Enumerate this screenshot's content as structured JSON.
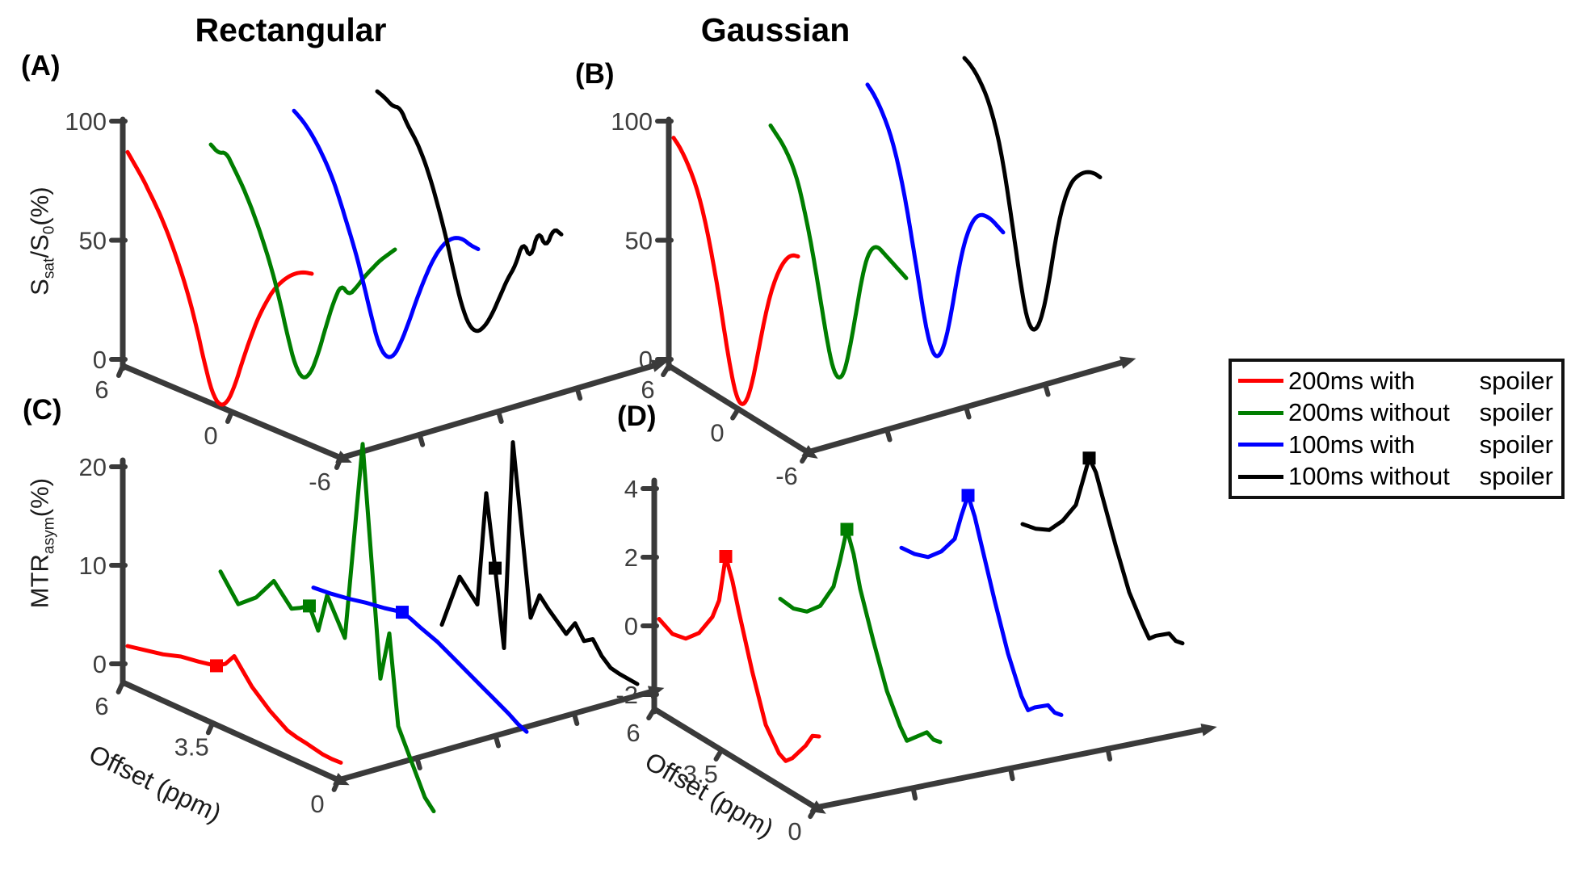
{
  "figure": {
    "column_titles": [
      "Rectangular",
      "Gaussian"
    ],
    "panel_labels": [
      "(A)",
      "(B)",
      "(C)",
      "(D)"
    ]
  },
  "colors": {
    "red": "#ff0000",
    "green": "#007e00",
    "blue": "#0000ff",
    "black": "#000000",
    "axis": "#3a3a3a",
    "tick_text": "#3e3e3e"
  },
  "legend": {
    "entries": [
      {
        "label_left": "200ms with",
        "label_right": "spoiler",
        "color": "#ff0000"
      },
      {
        "label_left": "200ms without",
        "label_right": "spoiler",
        "color": "#007e00"
      },
      {
        "label_left": "100ms with",
        "label_right": "spoiler",
        "color": "#0000ff"
      },
      {
        "label_left": "100ms without",
        "label_right": "spoiler",
        "color": "#000000"
      }
    ]
  },
  "chart_data": [
    {
      "id": "A",
      "type": "line",
      "title": "Rectangular",
      "ylabel": "Ssat/S0(%)",
      "ylabel_parts": [
        {
          "text": "S",
          "sub": false
        },
        {
          "text": "sat",
          "sub": true
        },
        {
          "text": "/S",
          "sub": false
        },
        {
          "text": "0",
          "sub": true
        },
        {
          "text": "(%)",
          "sub": false
        }
      ],
      "xlabel": "",
      "z_ticks": [
        0,
        50,
        100
      ],
      "offset_ticks": [
        6,
        0,
        -6
      ],
      "offset_range": [
        6,
        -6
      ],
      "offsets": [
        6,
        5.5,
        5,
        4.5,
        4,
        3.5,
        3,
        2.5,
        2,
        1.5,
        1,
        0.5,
        0,
        -0.5,
        -1,
        -1.5,
        -2,
        -2.5,
        -3,
        -3.5,
        -4,
        -4.5,
        -5,
        -5.5,
        -6
      ],
      "series": [
        {
          "name": "200ms with spoiler",
          "color": "#ff0000",
          "values": [
            87,
            83,
            79,
            74,
            69,
            63,
            56,
            48,
            39,
            28,
            15,
            4,
            0,
            3,
            12,
            24,
            35,
            45,
            53,
            60,
            65,
            69,
            72,
            74,
            75
          ]
        },
        {
          "name": "200ms without spoiler",
          "color": "#007e00",
          "values": [
            80,
            78,
            80,
            75,
            70,
            64,
            57,
            49,
            40,
            29,
            16,
            5,
            1,
            5,
            15,
            28,
            40,
            49,
            46,
            51,
            57,
            62,
            67,
            71,
            75
          ]
        },
        {
          "name": "100ms with spoiler",
          "color": "#0000ff",
          "values": [
            84,
            82,
            79,
            75,
            70,
            64,
            56,
            47,
            38,
            27,
            15,
            4,
            0,
            2,
            10,
            20,
            31,
            41,
            50,
            57,
            62,
            65,
            66,
            65,
            65
          ]
        },
        {
          "name": "100ms without spoiler",
          "color": "#000000",
          "values": [
            82,
            81,
            79,
            80,
            74,
            70,
            64,
            56,
            46,
            35,
            22,
            10,
            3,
            2,
            6,
            13,
            22,
            31,
            38,
            50,
            44,
            58,
            52,
            62,
            61
          ]
        }
      ]
    },
    {
      "id": "B",
      "type": "line",
      "title": "Gaussian",
      "ylabel": "",
      "ylabel_parts": [],
      "xlabel": "",
      "z_ticks": [
        0,
        50,
        100
      ],
      "offset_ticks": [
        6,
        0,
        -6
      ],
      "offset_range": [
        6,
        -6
      ],
      "offsets": [
        6,
        5.5,
        5,
        4.5,
        4,
        3.5,
        3,
        2.5,
        2,
        1.5,
        1,
        0.5,
        0,
        -0.5,
        -1,
        -1.5,
        -2,
        -2.5,
        -3,
        -3.5,
        -4,
        -4.5,
        -5,
        -5.5,
        -6
      ],
      "series": [
        {
          "name": "200ms with spoiler",
          "color": "#ff0000",
          "offsets": [
            6,
            5.5,
            5,
            4.5,
            4,
            3.5,
            3,
            2.5,
            2,
            1.5,
            1,
            0.5,
            0,
            -0.5,
            -1,
            -1.5,
            -2,
            -2.5,
            -3,
            -3.5,
            -4,
            -4.5,
            -5
          ],
          "values": [
            93,
            91,
            88,
            84,
            79,
            72,
            63,
            52,
            40,
            26,
            13,
            3,
            0,
            4,
            14,
            28,
            42,
            54,
            63,
            70,
            75,
            78,
            79
          ]
        },
        {
          "name": "200ms without spoiler",
          "color": "#007e00",
          "values": [
            88,
            86,
            84,
            81,
            77,
            71,
            62,
            52,
            40,
            27,
            14,
            4,
            1,
            5,
            17,
            32,
            48,
            60,
            66,
            68,
            67,
            66,
            65,
            64,
            63
          ]
        },
        {
          "name": "100ms with spoiler",
          "color": "#0000ff",
          "values": [
            95,
            93,
            90,
            86,
            81,
            74,
            65,
            54,
            41,
            28,
            14,
            4,
            0,
            3,
            12,
            26,
            42,
            55,
            64,
            70,
            73,
            74,
            74,
            73,
            72
          ]
        },
        {
          "name": "100ms without spoiler",
          "color": "#000000",
          "values": [
            96,
            95,
            93,
            90,
            86,
            80,
            72,
            61,
            47,
            32,
            17,
            5,
            1,
            4,
            13,
            27,
            44,
            58,
            68,
            75,
            79,
            82,
            84,
            85,
            85
          ]
        }
      ]
    },
    {
      "id": "C",
      "type": "line",
      "title": "Rectangular",
      "ylabel": "MTRasym(%)",
      "ylabel_parts": [
        {
          "text": "MTR",
          "sub": false
        },
        {
          "text": "asym",
          "sub": true
        },
        {
          "text": "(%)",
          "sub": false
        }
      ],
      "xlabel": "Offset (ppm)",
      "z_ticks": [
        0,
        10,
        20
      ],
      "offset_ticks": [
        6,
        3.5,
        0
      ],
      "offset_range": [
        6,
        0
      ],
      "marker_offset": 3.5,
      "offsets": [
        6,
        5.5,
        5,
        4.5,
        4,
        3.75,
        3.5,
        3.25,
        3,
        2.5,
        2,
        1.5,
        1.25,
        1,
        0.5,
        0.25,
        0
      ],
      "series": [
        {
          "name": "200ms with spoiler",
          "color": "#ff0000",
          "marker_value": 3.9,
          "values": [
            1.8,
            2.2,
            2.6,
            3.2,
            3.5,
            3.7,
            3.9,
            4.5,
            5.7,
            3.4,
            1.8,
            0.6,
            0.35,
            0.2,
            -0.2,
            -0.25,
            -0.2
          ]
        },
        {
          "name": "200ms without spoiler",
          "color": "#007e00",
          "marker_value": 7.1,
          "values": [
            6.5,
            4.0,
            5.5,
            8.0,
            6.0,
            6.5,
            7.1,
            5.0,
            9.0,
            5.5,
            26.0,
            3.0,
            8.0,
            -1.0,
            -5.0,
            -7.0,
            -8.0
          ]
        },
        {
          "name": "100ms with spoiler",
          "color": "#0000ff",
          "marker_value": 3.6,
          "values": [
            2.0,
            2.2,
            2.5,
            2.9,
            3.2,
            3.4,
            3.6,
            3.3,
            2.9,
            2.2,
            1.2,
            0.2,
            -0.3,
            -0.8,
            -1.8,
            -2.4,
            -2.8
          ]
        },
        {
          "name": "100ms without spoiler",
          "color": "#000000",
          "marker_value": 5.2,
          "offsets": [
            5,
            4.5,
            4,
            3.75,
            3.5,
            3.25,
            3,
            2.5,
            2.25,
            2,
            1.5,
            1.25,
            1,
            0.75,
            0.5,
            0.25,
            0,
            -0.25,
            -0.5
          ],
          "values": [
            -3.0,
            2.7,
            0.7,
            12.4,
            5.2,
            -2.5,
            18.8,
            1.8,
            4.5,
            3.5,
            1.8,
            3.3,
            1.9,
            2.5,
            1.2,
            0.4,
            0.2,
            0.1,
            0.0
          ]
        }
      ]
    },
    {
      "id": "D",
      "type": "line",
      "title": "Gaussian",
      "ylabel": "",
      "ylabel_parts": [],
      "xlabel": "Offset (ppm)",
      "z_ticks": [
        -2,
        0,
        2,
        4
      ],
      "offset_ticks": [
        6,
        3.5,
        0
      ],
      "offset_range": [
        6,
        0
      ],
      "marker_offset": 3.5,
      "offsets": [
        6,
        5.5,
        5,
        4.5,
        4,
        3.75,
        3.5,
        3.25,
        3,
        2.5,
        2,
        1.5,
        1.25,
        1,
        0.5,
        0.25,
        0
      ],
      "series": [
        {
          "name": "200ms with spoiler",
          "color": "#ff0000",
          "marker_value": 3.2,
          "values": [
            0.2,
            0.0,
            0.1,
            0.5,
            1.2,
            1.8,
            3.2,
            2.6,
            1.8,
            0.3,
            -1.0,
            -1.6,
            -1.7,
            -1.5,
            -0.9,
            -0.5,
            -0.4
          ]
        },
        {
          "name": "200ms without spoiler",
          "color": "#007e00",
          "marker_value": 3.0,
          "values": [
            -0.2,
            -0.25,
            -0.1,
            0.3,
            1.1,
            2.0,
            3.0,
            2.4,
            1.5,
            0.2,
            -1.0,
            -1.8,
            -2.1,
            -1.9,
            -1.5,
            -1.6,
            -1.55
          ]
        },
        {
          "name": "100ms with spoiler",
          "color": "#0000ff",
          "marker_value": 3.0,
          "values": [
            0.3,
            0.35,
            0.5,
            0.9,
            1.5,
            2.3,
            3.0,
            2.5,
            1.8,
            0.4,
            -0.9,
            -1.9,
            -2.2,
            -2.0,
            -1.7,
            -1.8,
            -1.75
          ]
        },
        {
          "name": "100ms without spoiler",
          "color": "#000000",
          "marker_value": 3.1,
          "values": [
            0.0,
            0.1,
            0.3,
            0.8,
            1.5,
            2.3,
            3.1,
            2.8,
            2.2,
            1.0,
            -0.1,
            -0.8,
            -1.1,
            -0.9,
            -0.6,
            -0.7,
            -0.65
          ]
        }
      ]
    }
  ]
}
